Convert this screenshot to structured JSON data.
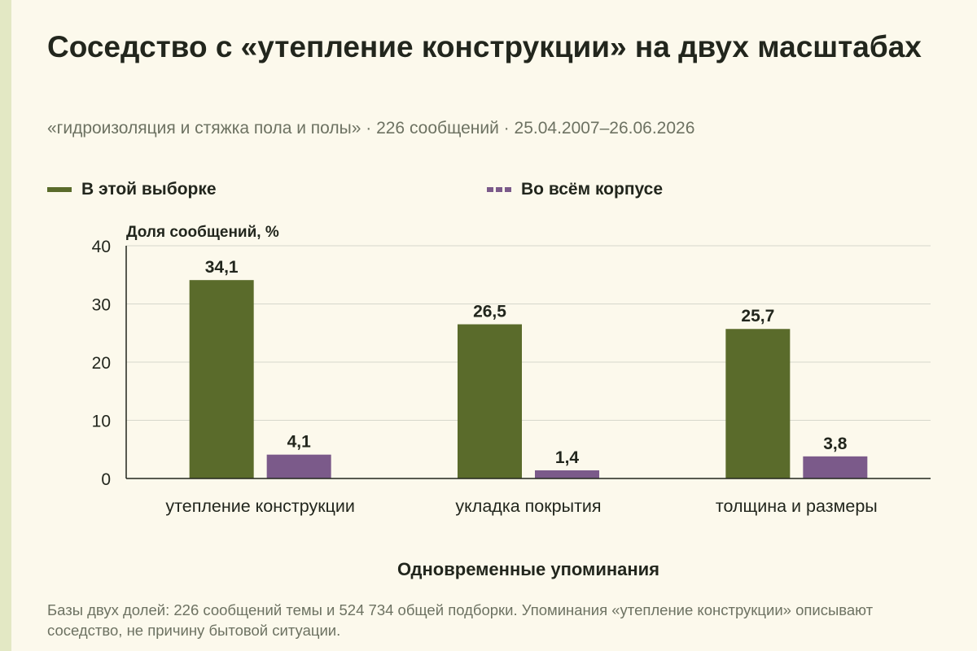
{
  "title": "Соседство с «утепление конструкции» на двух масштабах",
  "subtitle": "«гидроизоляция и стяжка пола и полы» · 226 сообщений · 25.04.2007–26.06.2026",
  "footnote": "Базы двух долей: 226 сообщений темы и 524 734 общей подборки. Упоминания «утепление конструкции» описывают соседство, не причину бытовой ситуации.",
  "colors": {
    "background": "#fcf9ec",
    "sample": "#5a6b2b",
    "corpus": "#7b5a8a",
    "text": "#22261d",
    "muted": "#6d7262"
  },
  "chart_data": {
    "type": "bar",
    "title": "Соседство с «утепление конструкции» на двух масштабах",
    "xlabel": "Одновременные упоминания",
    "ylabel": "Доля сообщений, %",
    "ylim": [
      0,
      40
    ],
    "yticks": [
      "0",
      "10",
      "20",
      "30",
      "40"
    ],
    "grid": true,
    "legend_placement": "top",
    "categories": [
      "утепление конструкции",
      "укладка покрытия",
      "толщина и размеры"
    ],
    "series": [
      {
        "name": "В этой выборке",
        "values": [
          34.1,
          26.5,
          25.7
        ],
        "labels": [
          "34,1",
          "26,5",
          "25,7"
        ]
      },
      {
        "name": "Во всём корпусе",
        "values": [
          4.1,
          1.4,
          3.8
        ],
        "labels": [
          "4,1",
          "1,4",
          "3,8"
        ]
      }
    ]
  }
}
